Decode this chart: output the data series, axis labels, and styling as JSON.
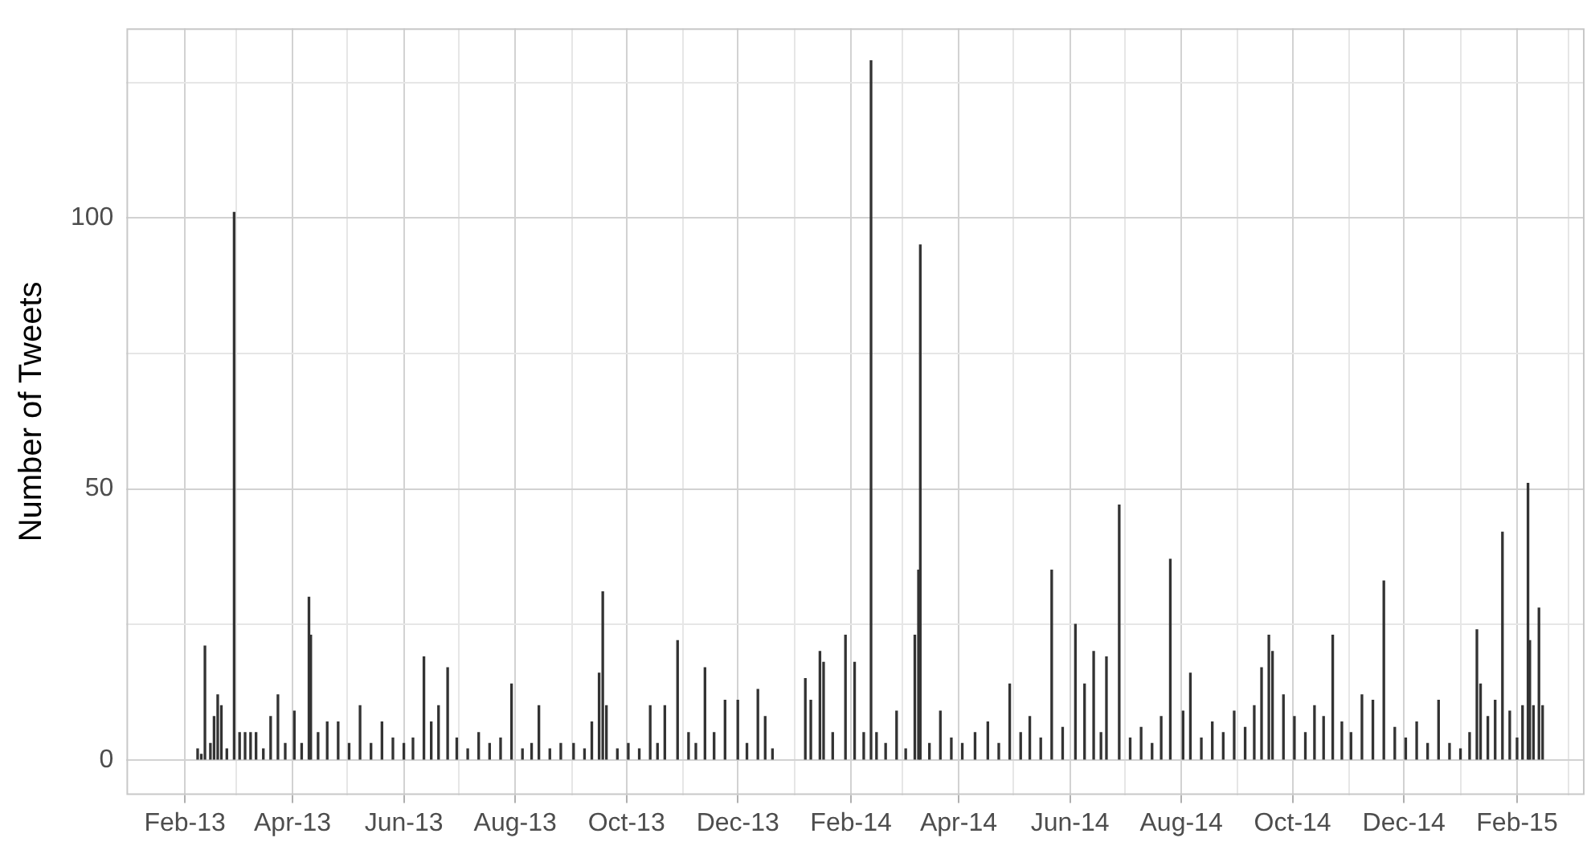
{
  "chart_data": {
    "type": "bar",
    "ylabel": "Number of Tweets",
    "color": "#333333",
    "grid": true,
    "xlim": [
      "2012-12-31",
      "2015-03-10"
    ],
    "ylim": [
      -6.5,
      135
    ],
    "xticks": [
      {
        "value": "2013-02-01",
        "label": "Feb-13"
      },
      {
        "value": "2013-03-01",
        "label": null
      },
      {
        "value": "2013-04-01",
        "label": "Apr-13"
      },
      {
        "value": "2013-05-01",
        "label": null
      },
      {
        "value": "2013-06-01",
        "label": "Jun-13"
      },
      {
        "value": "2013-07-01",
        "label": null
      },
      {
        "value": "2013-08-01",
        "label": "Aug-13"
      },
      {
        "value": "2013-09-01",
        "label": null
      },
      {
        "value": "2013-10-01",
        "label": "Oct-13"
      },
      {
        "value": "2013-11-01",
        "label": null
      },
      {
        "value": "2013-12-01",
        "label": "Dec-13"
      },
      {
        "value": "2014-01-01",
        "label": null
      },
      {
        "value": "2014-02-01",
        "label": "Feb-14"
      },
      {
        "value": "2014-03-01",
        "label": null
      },
      {
        "value": "2014-04-01",
        "label": "Apr-14"
      },
      {
        "value": "2014-05-01",
        "label": null
      },
      {
        "value": "2014-06-01",
        "label": "Jun-14"
      },
      {
        "value": "2014-07-01",
        "label": null
      },
      {
        "value": "2014-08-01",
        "label": "Aug-14"
      },
      {
        "value": "2014-09-01",
        "label": null
      },
      {
        "value": "2014-10-01",
        "label": "Oct-14"
      },
      {
        "value": "2014-11-01",
        "label": null
      },
      {
        "value": "2014-12-01",
        "label": "Dec-14"
      },
      {
        "value": "2015-01-01",
        "label": null
      },
      {
        "value": "2015-02-01",
        "label": "Feb-15"
      },
      {
        "value": "2015-03-01",
        "label": null
      }
    ],
    "yticks": [
      0,
      {
        "value": 25,
        "label": null
      },
      50,
      {
        "value": 75,
        "label": null
      },
      100,
      {
        "value": 125,
        "label": null
      }
    ],
    "x": [
      "2013-02-08",
      "2013-02-10",
      "2013-02-12",
      "2013-02-15",
      "2013-02-17",
      "2013-02-19",
      "2013-02-21",
      "2013-02-24",
      "2013-02-28",
      "2013-03-03",
      "2013-03-06",
      "2013-03-09",
      "2013-03-12",
      "2013-03-16",
      "2013-03-20",
      "2013-03-24",
      "2013-03-28",
      "2013-04-02",
      "2013-04-06",
      "2013-04-10",
      "2013-04-11",
      "2013-04-15",
      "2013-04-20",
      "2013-04-26",
      "2013-05-02",
      "2013-05-08",
      "2013-05-14",
      "2013-05-20",
      "2013-05-26",
      "2013-06-01",
      "2013-06-06",
      "2013-06-12",
      "2013-06-16",
      "2013-06-20",
      "2013-06-25",
      "2013-06-30",
      "2013-07-06",
      "2013-07-12",
      "2013-07-18",
      "2013-07-24",
      "2013-07-30",
      "2013-08-05",
      "2013-08-10",
      "2013-08-14",
      "2013-08-20",
      "2013-08-26",
      "2013-09-02",
      "2013-09-08",
      "2013-09-12",
      "2013-09-16",
      "2013-09-18",
      "2013-09-20",
      "2013-09-26",
      "2013-10-02",
      "2013-10-08",
      "2013-10-14",
      "2013-10-18",
      "2013-10-22",
      "2013-10-29",
      "2013-11-04",
      "2013-11-08",
      "2013-11-13",
      "2013-11-18",
      "2013-11-24",
      "2013-12-01",
      "2013-12-06",
      "2013-12-12",
      "2013-12-16",
      "2013-12-20",
      "2014-01-07",
      "2014-01-10",
      "2014-01-15",
      "2014-01-17",
      "2014-01-22",
      "2014-01-29",
      "2014-02-03",
      "2014-02-08",
      "2014-02-12",
      "2014-02-15",
      "2014-02-20",
      "2014-02-26",
      "2014-03-03",
      "2014-03-08",
      "2014-03-10",
      "2014-03-11",
      "2014-03-16",
      "2014-03-22",
      "2014-03-28",
      "2014-04-03",
      "2014-04-10",
      "2014-04-17",
      "2014-04-23",
      "2014-04-29",
      "2014-05-05",
      "2014-05-10",
      "2014-05-16",
      "2014-05-22",
      "2014-05-28",
      "2014-06-04",
      "2014-06-09",
      "2014-06-14",
      "2014-06-18",
      "2014-06-21",
      "2014-06-28",
      "2014-07-04",
      "2014-07-10",
      "2014-07-16",
      "2014-07-21",
      "2014-07-26",
      "2014-08-02",
      "2014-08-06",
      "2014-08-12",
      "2014-08-18",
      "2014-08-24",
      "2014-08-30",
      "2014-09-05",
      "2014-09-10",
      "2014-09-14",
      "2014-09-18",
      "2014-09-20",
      "2014-09-26",
      "2014-10-02",
      "2014-10-08",
      "2014-10-13",
      "2014-10-18",
      "2014-10-23",
      "2014-10-28",
      "2014-11-02",
      "2014-11-08",
      "2014-11-14",
      "2014-11-20",
      "2014-11-26",
      "2014-12-02",
      "2014-12-08",
      "2014-12-14",
      "2014-12-20",
      "2014-12-26",
      "2015-01-01",
      "2015-01-06",
      "2015-01-10",
      "2015-01-12",
      "2015-01-16",
      "2015-01-20",
      "2015-01-24",
      "2015-01-28",
      "2015-02-01",
      "2015-02-04",
      "2015-02-07",
      "2015-02-08",
      "2015-02-10",
      "2015-02-13",
      "2015-02-15"
    ],
    "values": [
      2,
      1,
      21,
      3,
      8,
      12,
      10,
      2,
      101,
      5,
      5,
      5,
      5,
      2,
      8,
      12,
      3,
      9,
      3,
      30,
      23,
      5,
      7,
      7,
      3,
      10,
      3,
      7,
      4,
      3,
      4,
      19,
      7,
      10,
      17,
      4,
      2,
      5,
      3,
      4,
      14,
      2,
      3,
      10,
      2,
      3,
      3,
      2,
      7,
      16,
      31,
      10,
      2,
      3,
      2,
      10,
      3,
      10,
      22,
      5,
      3,
      17,
      5,
      11,
      11,
      3,
      13,
      8,
      2,
      15,
      11,
      20,
      18,
      5,
      23,
      18,
      5,
      129,
      5,
      3,
      9,
      2,
      23,
      35,
      95,
      3,
      9,
      4,
      3,
      5,
      7,
      3,
      14,
      5,
      8,
      4,
      35,
      6,
      25,
      14,
      20,
      5,
      19,
      47,
      4,
      6,
      3,
      8,
      37,
      9,
      16,
      4,
      7,
      5,
      9,
      6,
      10,
      17,
      23,
      20,
      12,
      8,
      5,
      10,
      8,
      23,
      7,
      5,
      12,
      11,
      33,
      6,
      4,
      7,
      3,
      11,
      3,
      2,
      5,
      24,
      14,
      8,
      11,
      42,
      9,
      4,
      10,
      51,
      22,
      10,
      28,
      10
    ]
  }
}
